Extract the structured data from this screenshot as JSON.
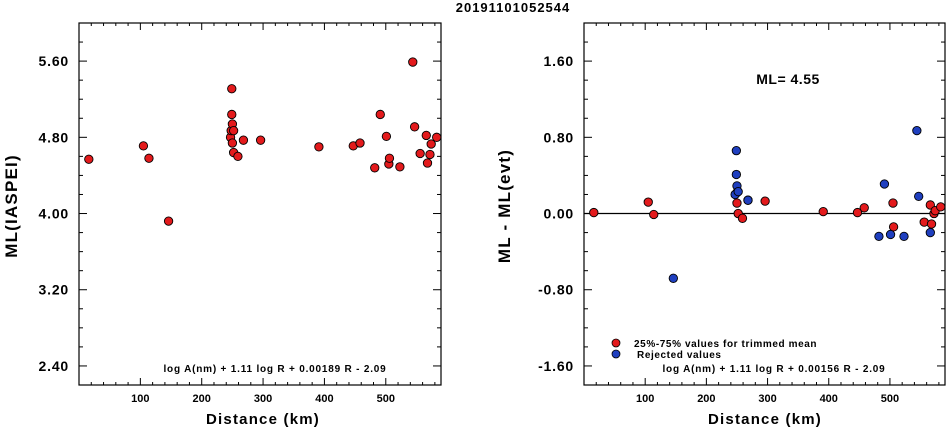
{
  "figure_title": "20191101052544",
  "chart_data": [
    {
      "type": "scatter",
      "xlabel": "Distance (km)",
      "ylabel": "ML(IASPEI)",
      "xlim": [
        0,
        590
      ],
      "ylim": [
        2.2,
        6.0
      ],
      "xticks": [
        100,
        200,
        300,
        400,
        500
      ],
      "yticks": [
        2.4,
        3.2,
        4.0,
        4.8,
        5.6
      ],
      "ytick_labels": [
        "2.40",
        "3.20",
        "4.00",
        "4.80",
        "5.60"
      ],
      "formula": "log A(nm) + 1.11 log R + 0.00189 R - 2.09",
      "series": [
        {
          "color": "#e31a1c",
          "points": [
            [
              16,
              4.57
            ],
            [
              105,
              4.71
            ],
            [
              114,
              4.58
            ],
            [
              146,
              3.92
            ],
            [
              247,
              4.8
            ],
            [
              248,
              4.87
            ],
            [
              249,
              5.31
            ],
            [
              249,
              5.04
            ],
            [
              250,
              4.94
            ],
            [
              250,
              4.74
            ],
            [
              252,
              4.64
            ],
            [
              252,
              4.87
            ],
            [
              259,
              4.6
            ],
            [
              268,
              4.77
            ],
            [
              296,
              4.77
            ],
            [
              391,
              4.7
            ],
            [
              447,
              4.71
            ],
            [
              458,
              4.74
            ],
            [
              482,
              4.48
            ],
            [
              491,
              5.04
            ],
            [
              501,
              4.81
            ],
            [
              505,
              4.52
            ],
            [
              506,
              4.58
            ],
            [
              523,
              4.49
            ],
            [
              544,
              5.59
            ],
            [
              547,
              4.91
            ],
            [
              556,
              4.63
            ],
            [
              566,
              4.82
            ],
            [
              568,
              4.53
            ],
            [
              572,
              4.62
            ],
            [
              574,
              4.73
            ],
            [
              583,
              4.8
            ]
          ]
        }
      ]
    },
    {
      "type": "scatter",
      "xlabel": "Distance (km)",
      "ylabel": "ML - ML(evt)",
      "xlim": [
        0,
        590
      ],
      "ylim": [
        -1.8,
        2.0
      ],
      "xticks": [
        100,
        200,
        300,
        400,
        500
      ],
      "yticks": [
        -1.6,
        -0.8,
        0.0,
        0.8,
        1.6
      ],
      "ytick_labels": [
        "-1.60",
        "-0.80",
        "0.00",
        "0.80",
        "1.60"
      ],
      "annotation": "ML= 4.55",
      "formula": "log A(nm) + 1.11 log R + 0.00156 R - 2.09",
      "reference_line": 0.0,
      "legend": {
        "placement": "bottom-left",
        "entries": [
          {
            "label": "25%-75% values for trimmed mean",
            "color": "#e31a1c"
          },
          {
            "label": "Rejected values",
            "color": "#1f3fbf"
          }
        ]
      },
      "series": [
        {
          "name": "25%-75% values for trimmed mean",
          "color": "#e31a1c",
          "points": [
            [
              16,
              0.01
            ],
            [
              105,
              0.12
            ],
            [
              114,
              -0.01
            ],
            [
              250,
              0.22
            ],
            [
              250,
              0.11
            ],
            [
              252,
              0.0
            ],
            [
              259,
              -0.05
            ],
            [
              268,
              0.14
            ],
            [
              296,
              0.13
            ],
            [
              391,
              0.02
            ],
            [
              447,
              0.01
            ],
            [
              458,
              0.06
            ],
            [
              505,
              0.11
            ],
            [
              506,
              -0.14
            ],
            [
              556,
              -0.09
            ],
            [
              566,
              0.09
            ],
            [
              568,
              -0.11
            ],
            [
              572,
              0.0
            ],
            [
              574,
              0.03
            ],
            [
              583,
              0.07
            ]
          ]
        },
        {
          "name": "Rejected values",
          "color": "#1f3fbf",
          "points": [
            [
              146,
              -0.68
            ],
            [
              247,
              0.2
            ],
            [
              249,
              0.66
            ],
            [
              249,
              0.41
            ],
            [
              250,
              0.29
            ],
            [
              252,
              0.23
            ],
            [
              268,
              0.14
            ],
            [
              482,
              -0.24
            ],
            [
              491,
              0.31
            ],
            [
              501,
              -0.22
            ],
            [
              523,
              -0.24
            ],
            [
              544,
              0.87
            ],
            [
              547,
              0.18
            ],
            [
              566,
              -0.2
            ]
          ]
        }
      ]
    }
  ]
}
